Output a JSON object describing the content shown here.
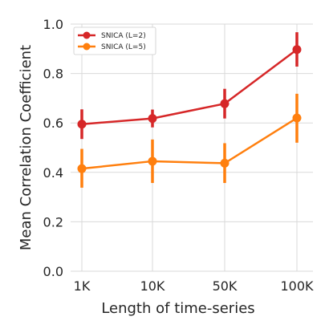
{
  "chart_data": {
    "type": "line",
    "title": "",
    "xlabel": "Length of time-series",
    "ylabel": "Mean Correlation Coefficient",
    "categories": [
      "1K",
      "10K",
      "50K",
      "100K"
    ],
    "ylim": [
      0.0,
      1.0
    ],
    "yticks": [
      "0.0",
      "0.2",
      "0.4",
      "0.6",
      "0.8",
      "1.0"
    ],
    "grid": true,
    "legend_position": "top-left",
    "series": [
      {
        "name": "SNICA (L=2)",
        "color": "#d62728",
        "values": [
          0.595,
          0.618,
          0.678,
          0.897
        ],
        "err_low": [
          0.535,
          0.582,
          0.618,
          0.828
        ],
        "err_high": [
          0.655,
          0.654,
          0.738,
          0.967
        ]
      },
      {
        "name": "SNICA (L=5)",
        "color": "#ff7f0e",
        "values": [
          0.415,
          0.445,
          0.437,
          0.62
        ],
        "err_low": [
          0.338,
          0.357,
          0.357,
          0.52
        ],
        "err_high": [
          0.495,
          0.533,
          0.518,
          0.718
        ]
      }
    ]
  }
}
